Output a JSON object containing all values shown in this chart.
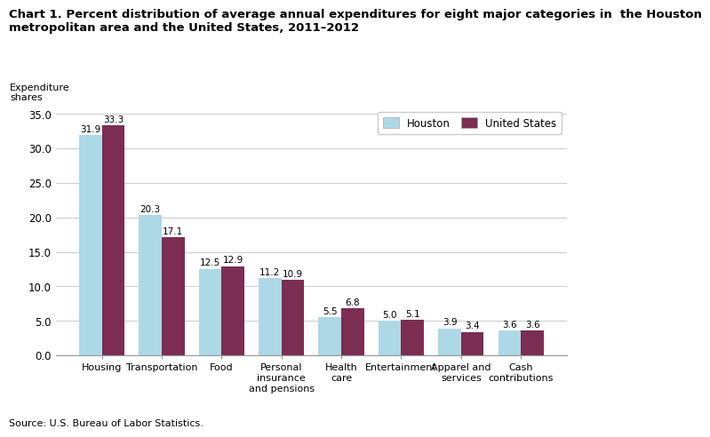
{
  "title_line1": "Chart 1. Percent distribution of average annual expenditures for eight major categories in  the Houston",
  "title_line2": "metropolitan area and the United States, 2011–2012",
  "ylabel": "Expenditure\nshares",
  "source": "Source: U.S. Bureau of Labor Statistics.",
  "categories": [
    "Housing",
    "Transportation",
    "Food",
    "Personal\ninsurance\nand pensions",
    "Health\ncare",
    "Entertainment",
    "Apparel and\nservices",
    "Cash\ncontributions"
  ],
  "houston_values": [
    31.9,
    20.3,
    12.5,
    11.2,
    5.5,
    5.0,
    3.9,
    3.6
  ],
  "us_values": [
    33.3,
    17.1,
    12.9,
    10.9,
    6.8,
    5.1,
    3.4,
    3.6
  ],
  "houston_color": "#add8e6",
  "us_color": "#7b2d52",
  "ylim": [
    0,
    36.0
  ],
  "yticks": [
    0.0,
    5.0,
    10.0,
    15.0,
    20.0,
    25.0,
    30.0,
    35.0
  ],
  "legend_labels": [
    "Houston",
    "United States"
  ],
  "bar_width": 0.38,
  "title_fontsize": 9.5,
  "ylabel_fontsize": 8.0,
  "tick_fontsize": 8.5,
  "xtick_fontsize": 8.0,
  "annotation_fontsize": 7.5,
  "source_fontsize": 8.0,
  "legend_fontsize": 8.5
}
